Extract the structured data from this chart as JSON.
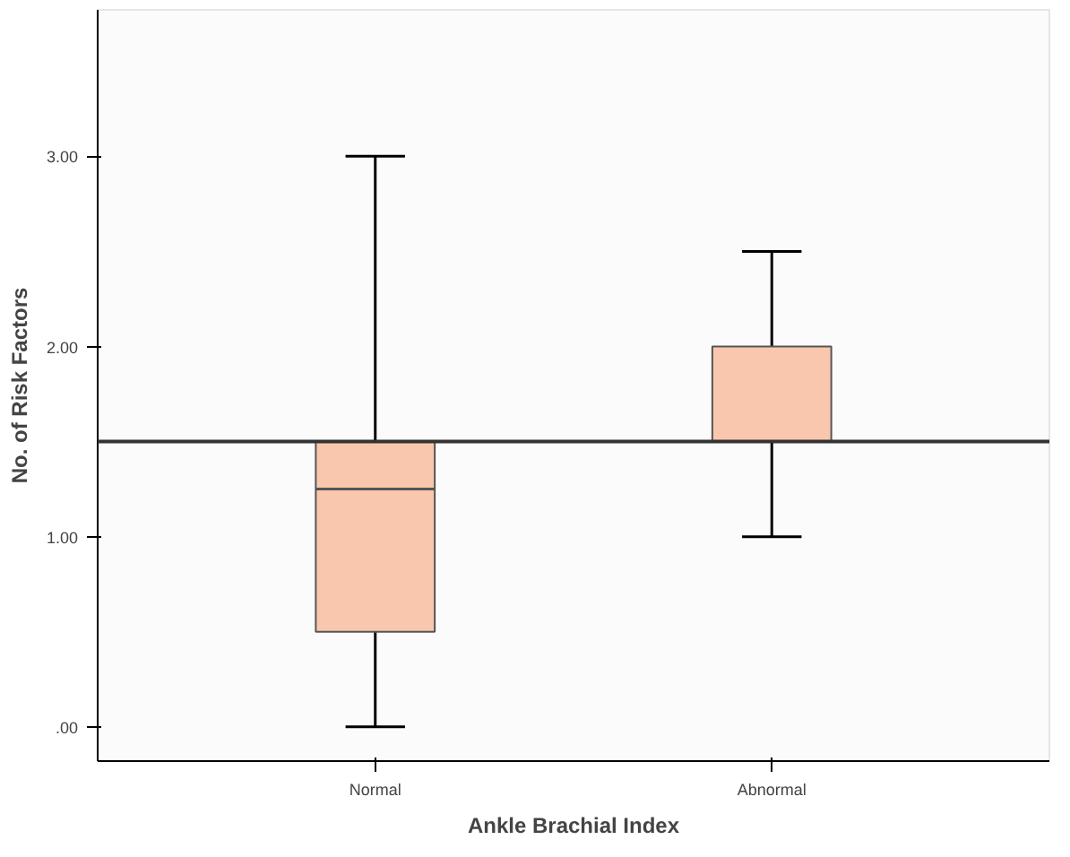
{
  "chart_data": {
    "type": "box",
    "xlabel": "Ankle Brachial Index",
    "ylabel": "No. of Risk Factors",
    "categories": [
      "Normal",
      "Abnormal"
    ],
    "boxes": [
      {
        "low": 0,
        "q1": 0.5,
        "median": 1.25,
        "q3": 1.5,
        "high": 3
      },
      {
        "low": 1,
        "q1": 1.5,
        "median": 1.5,
        "q3": 2,
        "high": 2.5
      }
    ],
    "color": "#f9c7ad",
    "ylim": [
      -0.18,
      3.77
    ],
    "yticks": [
      {
        "value": 0,
        "label": ".00"
      },
      {
        "value": 1,
        "label": "1.00"
      },
      {
        "value": 2,
        "label": "2.00"
      },
      {
        "value": 3,
        "label": "3.00"
      }
    ],
    "ref_lines": [
      {
        "axis": "y",
        "value": 1.5,
        "label": null,
        "color": "#333333"
      }
    ],
    "grid": false
  }
}
